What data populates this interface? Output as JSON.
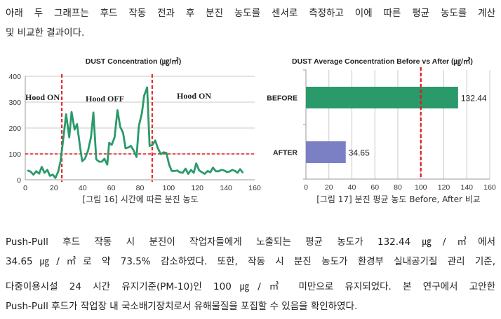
{
  "intro": {
    "lines": [
      "아래 두 그래프는 후드 작동 전과 후 분진 농도를 센서로 측정하고 이에 따른 평균 농도를 계산",
      "및 비교한 결과이다."
    ]
  },
  "conclusion": {
    "lines": [
      "Push-Pull 후드 작동 시 분진이 작업자들에게 노출되는 평균 농도가 132.44㎍/㎥에서",
      "34.65㎍/㎥로 약 73.5% 감소하였다. 또한, 작동 시 분진 농도가 환경부 실내공기질 관리 기준,",
      "다중이용시설 24 시간 유지기준(PM-10)인 100㎍/㎥ 미만으로 유지되었다. 본 연구에서 고안한",
      "Push-Pull 후드가 작업장 내 국소배기장치로서 유해물질을 포집할 수 있음을 확인하였다."
    ]
  },
  "chart_data": [
    {
      "type": "line",
      "title": "DUST Concentration (㎍/㎥)",
      "caption": "[그림 16]  시간에 따른 분진 농도",
      "xlim": [
        0,
        160
      ],
      "ylim": [
        0,
        400
      ],
      "xticks": [
        "0",
        "20",
        "40",
        "60",
        "80",
        "100",
        "120",
        "140",
        "160"
      ],
      "yticks": [
        "0",
        "100",
        "200",
        "300",
        "400"
      ],
      "grid": "horizontal",
      "color": "#2a9a6a",
      "reference_lines": {
        "color": "#e8141c",
        "horizontal_y": 100,
        "vertical_x": [
          25.5,
          88.5
        ]
      },
      "annotations": [
        "Hood ON",
        "Hood OFF",
        "Hood ON"
      ],
      "x": [
        1.6,
        3.6,
        5.7,
        7.7,
        9.7,
        11.5,
        13.4,
        15.4,
        17.2,
        19.2,
        21,
        23,
        24.6,
        26.6,
        28.5,
        30.7,
        32.3,
        34.4,
        36.1,
        38,
        39.7,
        41.6,
        43.8,
        45.9,
        47.5,
        49.5,
        51.5,
        53.4,
        55.2,
        57.2,
        58.5,
        60.3,
        62.3,
        64.3,
        66.2,
        68.2,
        69.9,
        71.9,
        73.7,
        75.6,
        77.6,
        79.2,
        81.3,
        82.9,
        85,
        86.7,
        88.6,
        90.6,
        92.5,
        94.5,
        96.4,
        98.4,
        100.3,
        102.1,
        104.1,
        106,
        107.9,
        109.8,
        111.8,
        113.6,
        115.6,
        117.5,
        119.2,
        121.3,
        123.3,
        125.1,
        127.2,
        129.1,
        130.9,
        132.9,
        134.9,
        136.7,
        138.7,
        140.6,
        142.4,
        144.4,
        146.4,
        148,
        149.8,
        151.8
      ],
      "y": [
        36,
        32,
        20,
        33,
        24,
        50,
        27,
        38,
        15,
        20,
        7,
        32,
        72,
        163,
        253,
        164,
        262,
        194,
        215,
        135,
        72,
        81,
        113,
        167,
        260,
        79,
        70,
        70,
        81,
        59,
        143,
        135,
        164,
        269,
        205,
        181,
        122,
        125,
        131,
        113,
        88,
        208,
        257,
        325,
        357,
        131,
        134,
        152,
        122,
        99,
        106,
        104,
        59,
        34,
        34,
        36,
        29,
        27,
        43,
        23,
        38,
        27,
        63,
        36,
        29,
        23,
        34,
        29,
        47,
        33,
        33,
        38,
        36,
        30,
        32,
        38,
        34,
        27,
        41,
        27
      ]
    },
    {
      "type": "bar",
      "orientation": "horizontal",
      "title": "DUST Average Concentration Before vs After (㎍/㎥)",
      "caption": "[그림 17]  분진 평균 농도 Before, After 비교",
      "categories": [
        "BEFORE",
        "AFTER"
      ],
      "values": [
        132.44,
        34.65
      ],
      "data_labels": [
        "132.44",
        "34.65"
      ],
      "colors": [
        "#2a9a6a",
        "#7b7fc4"
      ],
      "xlim": [
        0,
        160
      ],
      "xticks": [
        "0",
        "20",
        "40",
        "60",
        "80",
        "100",
        "120",
        "140",
        "160"
      ],
      "grid": "vertical",
      "reference_line": {
        "color": "#e8141c",
        "x": 100
      }
    }
  ]
}
